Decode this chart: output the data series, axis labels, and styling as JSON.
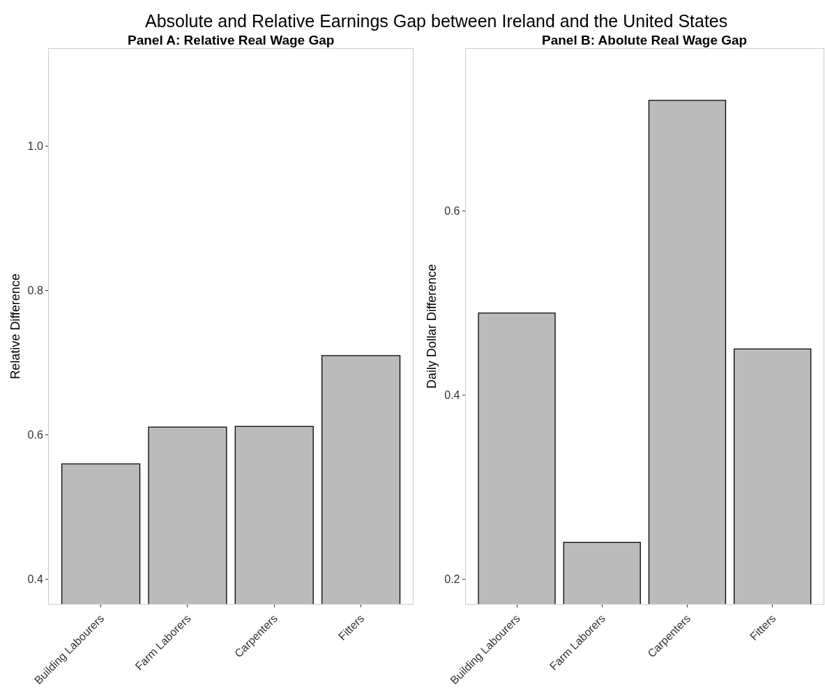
{
  "chart_data": [
    {
      "type": "bar",
      "title": "Panel A: Relative Real Wage Gap",
      "ylabel": "Relative Difference",
      "annotations": [
        "Absolute and Relative Earnings Gap between Ireland and the United States"
      ],
      "categories": [
        "Building Labourers",
        "Farm Laborers",
        "Carpenters",
        "Fitters"
      ],
      "values": [
        0.56,
        0.611,
        0.612,
        0.71
      ],
      "color": "#bbbbbb",
      "ylim": [
        0.366,
        1.135
      ],
      "yticks": [
        {
          "value": 0.4,
          "label": "0.4"
        },
        {
          "value": 0.6,
          "label": "0.6"
        },
        {
          "value": 0.8,
          "label": "0.8"
        },
        {
          "value": 1.0,
          "label": "1.0"
        }
      ]
    },
    {
      "type": "bar",
      "title": "Panel B: Abolute Real Wage Gap",
      "ylabel": "Daily Dollar Difference",
      "categories": [
        "Building Labourers",
        "Farm Laborers",
        "Carpenters",
        "Fitters"
      ],
      "values": [
        0.489,
        0.24,
        0.72,
        0.45
      ],
      "color": "#bbbbbb",
      "ylim": [
        0.173,
        0.776
      ],
      "yticks": [
        {
          "value": 0.2,
          "label": "0.2"
        },
        {
          "value": 0.4,
          "label": "0.4"
        },
        {
          "value": 0.6,
          "label": "0.6"
        }
      ]
    }
  ]
}
